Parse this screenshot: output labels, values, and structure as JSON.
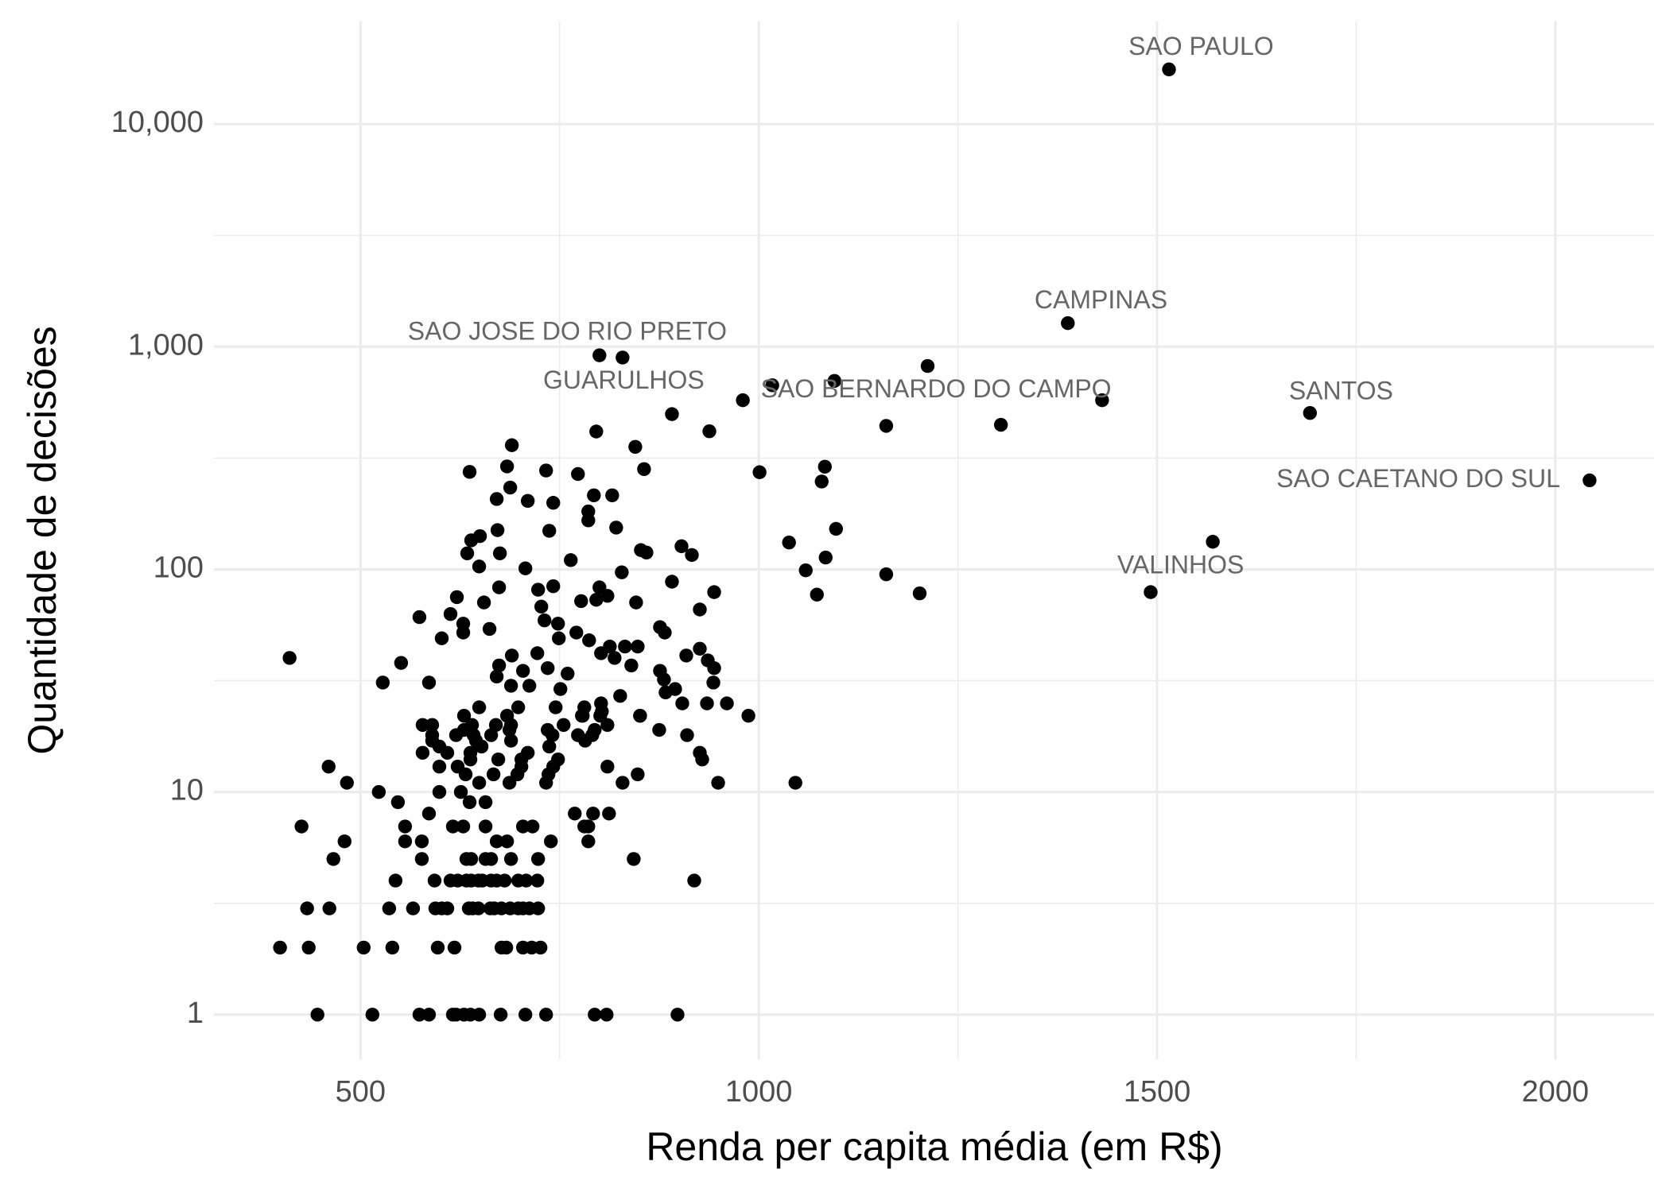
{
  "chart_data": {
    "type": "scatter",
    "xlabel": "Renda per capita média (em R$)",
    "ylabel": "Quantidade de decisões",
    "xlim": [
      316,
      2124
    ],
    "ylim": [
      0.63,
      28900
    ],
    "yscale": "log",
    "grid": true,
    "color": "#000000",
    "xticks": [
      500,
      1000,
      1500,
      2000
    ],
    "yticks": [
      1,
      10,
      100,
      {
        "value": 1000,
        "label": "1,000"
      },
      {
        "value": 10000,
        "label": "10,000"
      }
    ],
    "x": [
      446,
      515,
      574,
      586,
      616,
      620,
      630,
      638,
      649,
      676,
      707,
      733,
      794,
      809,
      898,
      399,
      435,
      504,
      540,
      597,
      618,
      677,
      683,
      704,
      715,
      726,
      433,
      461,
      536,
      566,
      594,
      602,
      609,
      636,
      641,
      648,
      663,
      668,
      677,
      688,
      698,
      704,
      712,
      723,
      544,
      593,
      613,
      622,
      633,
      639,
      648,
      653,
      664,
      671,
      681,
      698,
      708,
      722,
      919,
      466,
      577,
      633,
      639,
      657,
      664,
      689,
      723,
      843,
      480,
      556,
      577,
      671,
      684,
      739,
      786,
      426,
      556,
      616,
      629,
      657,
      704,
      716,
      781,
      786,
      586,
      769,
      792,
      812,
      547,
      637,
      657,
      523,
      599,
      626,
      483,
      649,
      687,
      733,
      829,
      949,
      1046,
      632,
      667,
      697,
      736,
      848,
      460,
      599,
      622,
      702,
      742,
      810,
      638,
      673,
      702,
      748,
      929,
      578,
      609,
      638,
      710,
      926,
      599,
      652,
      737,
      590,
      645,
      689,
      782,
      590,
      620,
      642,
      664,
      741,
      773,
      791,
      910,
      630,
      687,
      735,
      794,
      875,
      578,
      590,
      640,
      670,
      689,
      755,
      810,
      630,
      684,
      778,
      801,
      851,
      987,
      649,
      698,
      745,
      781,
      411,
      528,
      551,
      574,
      586,
      602,
      613,
      621,
      629,
      629,
      634,
      637,
      639,
      650,
      649,
      655,
      662,
      674,
      672,
      675,
      671,
      684,
      690,
      688,
      710,
      707,
      723,
      733,
      737,
      742,
      742,
      748,
      764,
      773,
      796,
      793,
      786,
      786,
      796,
      810,
      816,
      821,
      828,
      845,
      856,
      852,
      859,
      891,
      903,
      916,
      938,
      944,
      1001,
      1038,
      1059,
      1073,
      1079,
      1084,
      1083,
      1097,
      1160,
      1202,
      777,
      800,
      846,
      848,
      876,
      882,
      891,
      909,
      926,
      936,
      944,
      943,
      935,
      960,
      926,
      813,
      819,
      832,
      840,
      876,
      881,
      895,
      904,
      727,
      731,
      749,
      771,
      787,
      802,
      760,
      735,
      722,
      690,
      674,
      704,
      671,
      689,
      712,
      751,
      779,
      802,
      803,
      826,
      851,
      883,
      1515,
      1388,
      1692,
      2043,
      1492,
      1570,
      800,
      829,
      1017,
      1095,
      1212,
      1431,
      1304,
      1160,
      980
    ],
    "values": [
      1,
      1,
      1,
      1,
      1,
      1,
      1,
      1,
      1,
      1,
      1,
      1,
      1,
      1,
      1,
      2,
      2,
      2,
      2,
      2,
      2,
      2,
      2,
      2,
      2,
      2,
      3,
      3,
      3,
      3,
      3,
      3,
      3,
      3,
      3,
      3,
      3,
      3,
      3,
      3,
      3,
      3,
      3,
      3,
      4,
      4,
      4,
      4,
      4,
      4,
      4,
      4,
      4,
      4,
      4,
      4,
      4,
      4,
      4,
      5,
      5,
      5,
      5,
      5,
      5,
      5,
      5,
      5,
      6,
      6,
      6,
      6,
      6,
      6,
      6,
      7,
      7,
      7,
      7,
      7,
      7,
      7,
      7,
      7,
      8,
      8,
      8,
      8,
      9,
      9,
      9,
      10,
      10,
      10,
      11,
      11,
      11,
      11,
      11,
      11,
      11,
      12,
      12,
      12,
      12,
      12,
      13,
      13,
      13,
      13,
      13,
      13,
      14,
      14,
      14,
      14,
      14,
      15,
      15,
      15,
      15,
      15,
      16,
      16,
      16,
      17,
      17,
      17,
      17,
      18,
      18,
      18,
      18,
      18,
      18,
      18,
      18,
      19,
      19,
      19,
      19,
      19,
      20,
      20,
      20,
      20,
      20,
      20,
      20,
      22,
      22,
      22,
      22,
      22,
      22,
      24,
      24,
      24,
      24,
      40,
      31,
      38,
      61,
      31,
      49,
      63,
      75,
      57,
      52,
      118,
      274,
      135,
      141,
      103,
      71,
      54,
      83,
      150,
      118,
      207,
      290,
      361,
      233,
      203,
      101,
      81,
      278,
      149,
      199,
      84,
      57,
      110,
      268,
      416,
      215,
      182,
      166,
      73,
      76,
      215,
      154,
      97,
      355,
      282,
      122,
      119,
      498,
      127,
      116,
      417,
      79,
      273,
      132,
      99,
      77,
      248,
      113,
      289,
      152,
      95,
      78,
      72,
      83,
      71,
      45,
      55,
      52,
      88,
      41,
      44,
      39,
      36,
      31,
      25,
      25,
      66,
      45,
      40,
      45,
      37,
      35,
      32,
      29,
      25,
      68,
      59,
      49,
      52,
      48,
      42,
      34,
      36,
      42,
      41,
      37,
      35,
      33,
      30,
      30,
      29,
      22,
      25,
      23,
      27,
      22,
      28,
      17600,
      1276,
      504,
      251,
      79,
      133,
      915,
      894,
      671,
      702,
      819,
      575,
      446,
      441,
      575
    ],
    "annotations": [
      {
        "text": "SAO PAULO",
        "x": 1515,
        "y": 17600
      },
      {
        "text": "CAMPINAS",
        "x": 1388,
        "y": 1276
      },
      {
        "text": "SANTOS",
        "x": 1692,
        "y": 504
      },
      {
        "text": "SAO CAETANO DO SUL",
        "x": 2043,
        "y": 251
      },
      {
        "text": "VALINHOS",
        "x": 1492,
        "y": 79
      },
      {
        "text": "SAO JOSE DO RIO PRETO",
        "x": 800,
        "y": 915
      },
      {
        "text": "GUARULHOS",
        "x": 891,
        "y": 498
      },
      {
        "text": "SAO BERNARDO DO CAMPO",
        "x": 1017,
        "y": 671
      }
    ]
  }
}
